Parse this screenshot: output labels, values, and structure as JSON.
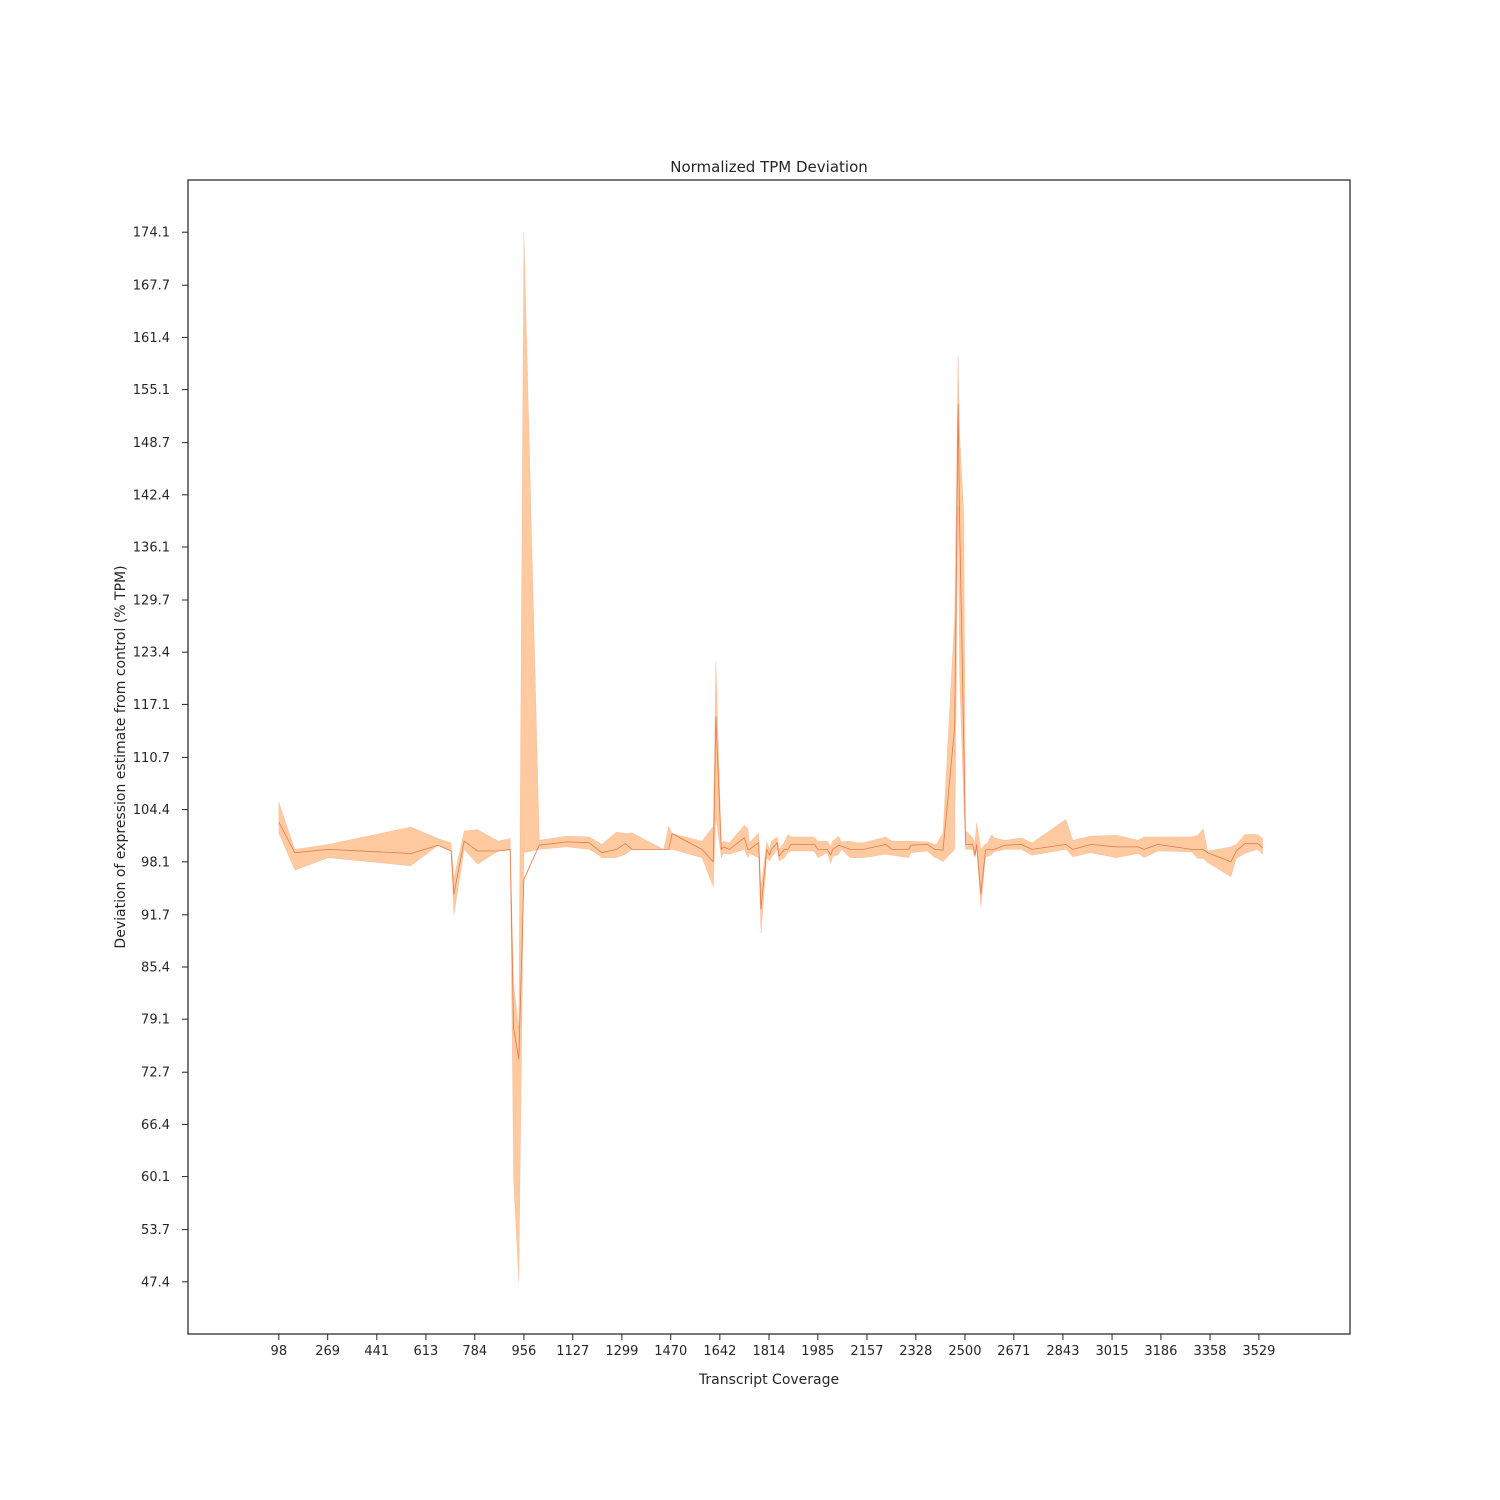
{
  "chart_data": {
    "type": "area",
    "title": "Normalized TPM Deviation",
    "xlabel": "Transcript Coverage",
    "ylabel": "Deviation of expression estimate from control (% TPM)",
    "xlim": [
      -220,
      3848
    ],
    "ylim": [
      41.1,
      180.4
    ],
    "x_ticks": [
      "98",
      "269",
      "441",
      "613",
      "784",
      "956",
      "1127",
      "1299",
      "1470",
      "1642",
      "1814",
      "1985",
      "2157",
      "2328",
      "2500",
      "2671",
      "2843",
      "3015",
      "3186",
      "3358",
      "3529"
    ],
    "y_ticks": [
      "47.4",
      "53.7",
      "60.1",
      "66.4",
      "72.7",
      "79.1",
      "85.4",
      "91.7",
      "98.1",
      "104.4",
      "110.7",
      "117.1",
      "123.4",
      "129.7",
      "136.1",
      "142.4",
      "148.7",
      "155.1",
      "161.4",
      "167.7",
      "174.1"
    ],
    "grid": false,
    "colors": {
      "band": "#ffcaa0",
      "line": "#e07a4b",
      "axes": "#262626"
    },
    "series": [
      {
        "x": [
          98,
          154,
          272,
          560,
          656,
          701,
          711,
          747,
          794,
          866,
          908,
          920,
          938,
          956,
          1010,
          1105,
          1184,
          1210,
          1228,
          1280,
          1311,
          1334,
          1445,
          1463,
          1475,
          1579,
          1619,
          1628,
          1647,
          1654,
          1675,
          1728,
          1740,
          1745,
          1778,
          1786,
          1806,
          1816,
          1822,
          1843,
          1849,
          1868,
          1880,
          1891,
          1966,
          1974,
          1985,
          2018,
          2030,
          2037,
          2058,
          2067,
          2098,
          2122,
          2145,
          2223,
          2244,
          2303,
          2311,
          2369,
          2394,
          2400,
          2423,
          2464,
          2476,
          2482,
          2496,
          2502,
          2527,
          2535,
          2541,
          2556,
          2572,
          2578,
          2594,
          2602,
          2640,
          2697,
          2735,
          2853,
          2878,
          2941,
          3030,
          3106,
          3127,
          3175,
          3293,
          3315,
          3334,
          3350,
          3431,
          3450,
          3480,
          3524,
          3542
        ],
        "values": [
          102.9,
          99.2,
          99.6,
          99.1,
          100.1,
          99.4,
          94.2,
          100.6,
          99.4,
          99.4,
          99.6,
          78.0,
          74.3,
          96.0,
          100.1,
          100.5,
          100.4,
          99.7,
          99.2,
          99.6,
          100.3,
          99.6,
          99.6,
          99.6,
          101.5,
          99.6,
          98.1,
          115.6,
          99.6,
          99.9,
          99.6,
          101.0,
          99.6,
          99.6,
          100.4,
          92.4,
          99.6,
          98.9,
          99.6,
          100.4,
          98.8,
          99.6,
          99.6,
          100.2,
          100.2,
          100.2,
          99.6,
          99.6,
          98.9,
          99.6,
          100.1,
          100.0,
          99.6,
          99.6,
          99.6,
          100.2,
          99.6,
          99.6,
          100.1,
          100.2,
          99.6,
          99.6,
          99.5,
          114.4,
          153.3,
          138.0,
          112.1,
          100.2,
          100.2,
          98.9,
          100.2,
          94.2,
          99.5,
          99.6,
          99.6,
          99.6,
          100.1,
          100.2,
          99.6,
          100.2,
          99.6,
          100.2,
          99.9,
          99.9,
          99.6,
          100.2,
          99.6,
          99.6,
          99.6,
          99.2,
          98.1,
          99.4,
          100.3,
          100.3,
          99.8
        ],
        "lower": [
          101.6,
          97.1,
          98.6,
          97.6,
          100.1,
          99.4,
          91.7,
          99.6,
          97.8,
          99.4,
          99.5,
          59.8,
          47.4,
          99.2,
          99.6,
          99.9,
          99.6,
          99.1,
          98.6,
          98.6,
          99.0,
          99.6,
          99.6,
          99.6,
          99.6,
          98.6,
          95.1,
          103.5,
          98.6,
          99.1,
          99.0,
          99.6,
          98.6,
          99.1,
          98.6,
          89.5,
          98.6,
          98.2,
          98.6,
          99.6,
          98.2,
          98.6,
          99.2,
          99.4,
          99.4,
          99.3,
          98.6,
          99.2,
          97.9,
          98.7,
          99.0,
          99.6,
          98.6,
          98.6,
          98.6,
          99.0,
          98.9,
          98.6,
          99.2,
          99.4,
          98.6,
          98.6,
          98.1,
          99.6,
          141.0,
          119.6,
          105.2,
          99.6,
          99.6,
          98.6,
          99.6,
          92.6,
          98.7,
          98.7,
          99.0,
          99.3,
          99.6,
          99.6,
          98.9,
          99.6,
          98.7,
          99.2,
          98.6,
          99.1,
          98.6,
          99.4,
          99.3,
          98.5,
          98.5,
          98.0,
          96.3,
          98.5,
          99.1,
          99.6,
          99.0
        ],
        "upper": [
          105.3,
          99.6,
          100.2,
          102.3,
          100.9,
          100.4,
          96.1,
          101.8,
          102.0,
          100.6,
          100.9,
          83.3,
          78.0,
          174.1,
          100.7,
          101.2,
          101.1,
          100.6,
          100.2,
          101.7,
          101.5,
          101.6,
          99.6,
          102.4,
          101.5,
          100.6,
          102.4,
          122.3,
          100.3,
          100.6,
          100.4,
          102.5,
          102.1,
          100.4,
          101.6,
          95.0,
          100.5,
          99.6,
          100.6,
          101.1,
          99.6,
          100.5,
          101.4,
          101.1,
          101.1,
          101.0,
          100.6,
          100.6,
          100.0,
          100.6,
          101.2,
          100.5,
          100.6,
          100.4,
          100.4,
          101.1,
          100.6,
          100.6,
          100.6,
          100.5,
          100.2,
          100.2,
          101.6,
          127.7,
          159.2,
          149.3,
          140.0,
          101.9,
          101.0,
          100.4,
          102.8,
          99.6,
          100.3,
          100.3,
          101.4,
          101.0,
          100.7,
          101.0,
          100.4,
          103.2,
          100.7,
          101.2,
          101.3,
          100.7,
          101.1,
          101.1,
          101.1,
          101.3,
          102.1,
          99.4,
          99.9,
          100.2,
          101.4,
          101.4,
          100.9
        ]
      }
    ]
  }
}
